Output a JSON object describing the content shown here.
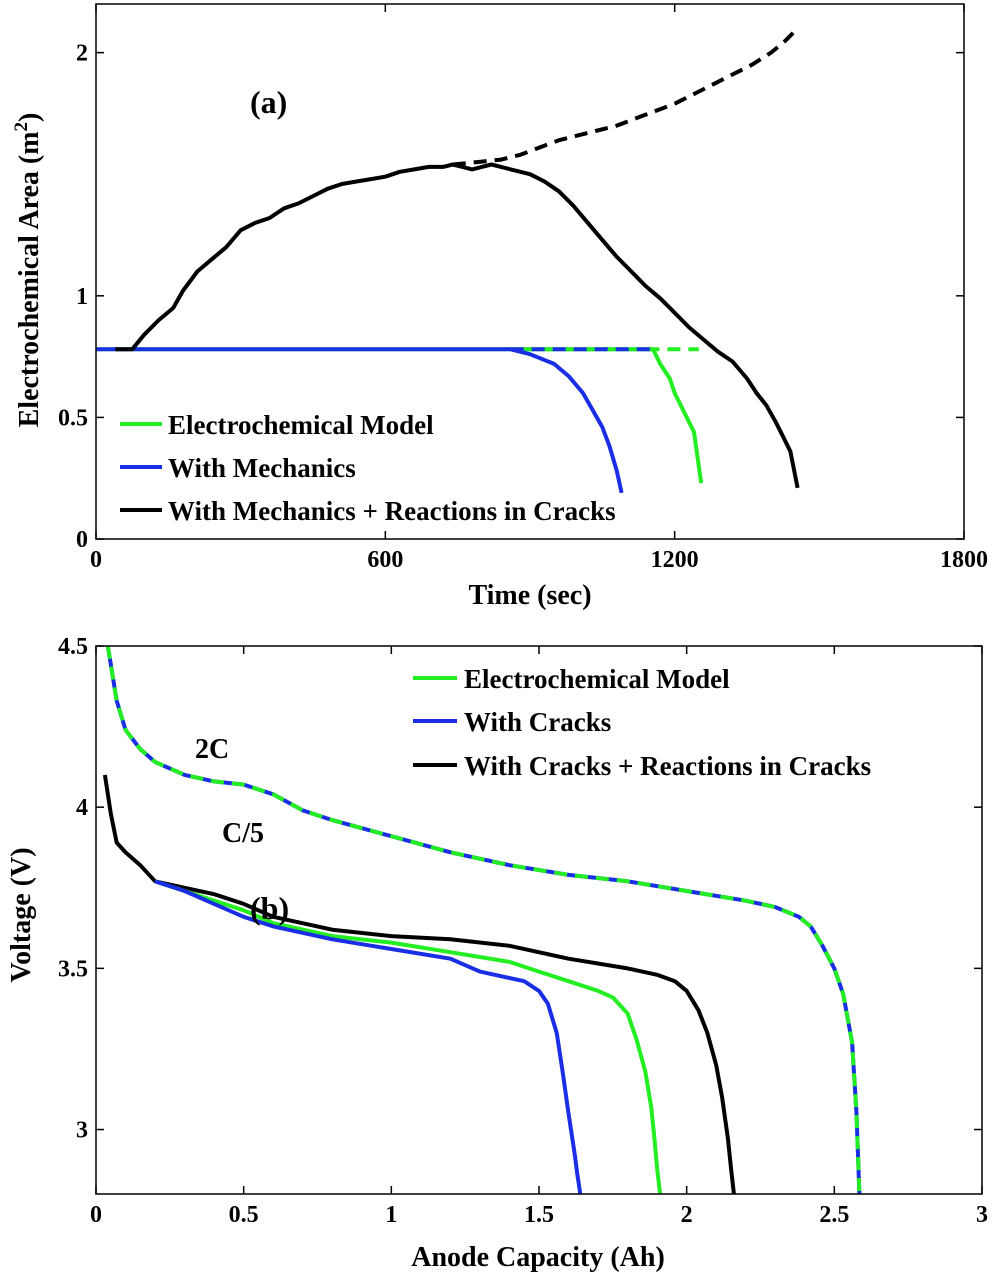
{
  "chart_data": [
    {
      "type": "line",
      "panel_label": "(a)",
      "xlabel": "Time (sec)",
      "ylabel_main": "Electrochemical Area (m",
      "ylabel_sup": "2",
      "ylabel_end": ")",
      "xlim": [
        0,
        1800
      ],
      "ylim": [
        0,
        2.2
      ],
      "xticks": [
        0,
        600,
        1200,
        1800
      ],
      "xtick_labels": [
        "0",
        "600",
        "1200",
        "1800"
      ],
      "yticks": [
        0,
        0.5,
        1,
        2
      ],
      "ytick_labels": [
        "0",
        "0.5",
        "1",
        "2"
      ],
      "legend": [
        "Electrochemical Model",
        "With Mechanics",
        "With Mechanics + Reactions in Cracks"
      ],
      "series": [
        {
          "name": "Electrochemical Model",
          "color": "#22ee22",
          "dash": false,
          "x": [
            0,
            1155,
            1170,
            1190,
            1200,
            1210,
            1220,
            1240,
            1255
          ],
          "y": [
            0.78,
            0.78,
            0.72,
            0.66,
            0.6,
            0.56,
            0.52,
            0.44,
            0.23
          ]
        },
        {
          "name": "Electrochemical Model (dashed)",
          "color": "#22ee22",
          "dash": true,
          "x": [
            880,
            1250
          ],
          "y": [
            0.78,
            0.78
          ]
        },
        {
          "name": "With Mechanics",
          "color": "#1a2ee6",
          "dash": false,
          "x": [
            0,
            860,
            900,
            950,
            980,
            1010,
            1030,
            1050,
            1065,
            1080,
            1090
          ],
          "y": [
            0.78,
            0.78,
            0.76,
            0.72,
            0.67,
            0.6,
            0.53,
            0.46,
            0.38,
            0.28,
            0.19
          ]
        },
        {
          "name": "With Mechanics (dashed)",
          "color": "#1a2ee6",
          "dash": true,
          "x": [
            860,
            1160
          ],
          "y": [
            0.78,
            0.78
          ]
        },
        {
          "name": "With Mechanics + Reactions in Cracks",
          "color": "#000000",
          "dash": false,
          "x": [
            40,
            75,
            100,
            130,
            160,
            180,
            210,
            240,
            270,
            300,
            330,
            360,
            390,
            420,
            450,
            480,
            510,
            540,
            570,
            600,
            630,
            660,
            690,
            720,
            740,
            760,
            780,
            800,
            820,
            840,
            860,
            880,
            900,
            930,
            960,
            990,
            1020,
            1050,
            1080,
            1110,
            1140,
            1170,
            1200,
            1230,
            1260,
            1290,
            1320,
            1350,
            1370,
            1390,
            1410,
            1425,
            1440,
            1455
          ],
          "y": [
            0.78,
            0.78,
            0.84,
            0.9,
            0.95,
            1.02,
            1.1,
            1.15,
            1.2,
            1.27,
            1.3,
            1.32,
            1.36,
            1.38,
            1.41,
            1.44,
            1.46,
            1.47,
            1.48,
            1.49,
            1.51,
            1.52,
            1.53,
            1.53,
            1.54,
            1.53,
            1.52,
            1.53,
            1.54,
            1.53,
            1.52,
            1.51,
            1.5,
            1.47,
            1.43,
            1.37,
            1.3,
            1.23,
            1.16,
            1.1,
            1.04,
            0.99,
            0.93,
            0.87,
            0.82,
            0.77,
            0.73,
            0.66,
            0.6,
            0.55,
            0.48,
            0.42,
            0.36,
            0.21
          ]
        },
        {
          "name": "With Mechanics + Reactions in Cracks (dashed)",
          "color": "#000000",
          "dash": true,
          "x": [
            740,
            790,
            840,
            880,
            920,
            960,
            1000,
            1040,
            1080,
            1120,
            1160,
            1200,
            1240,
            1280,
            1320,
            1360,
            1400,
            1430,
            1450
          ],
          "y": [
            1.54,
            1.55,
            1.56,
            1.58,
            1.61,
            1.64,
            1.66,
            1.68,
            1.7,
            1.73,
            1.76,
            1.79,
            1.83,
            1.87,
            1.91,
            1.95,
            2.0,
            2.05,
            2.09
          ]
        }
      ]
    },
    {
      "type": "line",
      "panel_label": "(b)",
      "xlabel": "Anode Capacity (Ah)",
      "ylabel": "Voltage (V)",
      "xlim": [
        0,
        3
      ],
      "ylim": [
        2.8,
        4.5
      ],
      "xticks": [
        0,
        0.5,
        1,
        1.5,
        2,
        2.5,
        3
      ],
      "xtick_labels": [
        "0",
        "0.5",
        "1",
        "1.5",
        "2",
        "2.5",
        "3"
      ],
      "yticks": [
        3,
        3.5,
        4,
        4.5
      ],
      "ytick_labels": [
        "3",
        "3.5",
        "4",
        "4.5"
      ],
      "legend": [
        "Electrochemical Model",
        "With Cracks",
        "With Cracks + Reactions in Cracks"
      ],
      "annotations": [
        "C/5",
        "2C"
      ],
      "series": [
        {
          "name": "C/5 With Cracks",
          "color": "#1a2ee6",
          "dash": false,
          "x": [
            0.04,
            0.07,
            0.1,
            0.15,
            0.2,
            0.3,
            0.4,
            0.5,
            0.6,
            0.7,
            0.8,
            1.0,
            1.2,
            1.4,
            1.6,
            1.8,
            2.0,
            2.2,
            2.3,
            2.38,
            2.42,
            2.46,
            2.5,
            2.53,
            2.56,
            2.575,
            2.585
          ],
          "y": [
            4.5,
            4.33,
            4.24,
            4.18,
            4.14,
            4.1,
            4.08,
            4.07,
            4.04,
            3.99,
            3.96,
            3.91,
            3.86,
            3.82,
            3.79,
            3.77,
            3.74,
            3.71,
            3.69,
            3.66,
            3.63,
            3.57,
            3.5,
            3.42,
            3.27,
            3.05,
            2.8
          ]
        },
        {
          "name": "C/5 Electrochemical Model (dashed)",
          "color": "#22ee22",
          "dash": true,
          "x": [
            0.04,
            0.07,
            0.1,
            0.15,
            0.2,
            0.3,
            0.4,
            0.5,
            0.6,
            0.7,
            0.8,
            1.0,
            1.2,
            1.4,
            1.6,
            1.8,
            2.0,
            2.2,
            2.3,
            2.38,
            2.42,
            2.46,
            2.5,
            2.53,
            2.56,
            2.575,
            2.585
          ],
          "y": [
            4.5,
            4.33,
            4.24,
            4.18,
            4.14,
            4.1,
            4.08,
            4.07,
            4.04,
            3.99,
            3.96,
            3.91,
            3.86,
            3.82,
            3.79,
            3.77,
            3.74,
            3.71,
            3.69,
            3.66,
            3.63,
            3.57,
            3.5,
            3.42,
            3.27,
            3.05,
            2.8
          ]
        },
        {
          "name": "2C With Cracks + Reactions in Cracks",
          "color": "#000000",
          "dash": false,
          "x": [
            0.03,
            0.05,
            0.07,
            0.1,
            0.15,
            0.2,
            0.3,
            0.4,
            0.5,
            0.6,
            0.8,
            1.0,
            1.2,
            1.4,
            1.6,
            1.8,
            1.9,
            1.96,
            2.0,
            2.04,
            2.07,
            2.1,
            2.12,
            2.14,
            2.15,
            2.16
          ],
          "y": [
            4.1,
            3.98,
            3.89,
            3.86,
            3.82,
            3.77,
            3.75,
            3.73,
            3.7,
            3.66,
            3.62,
            3.6,
            3.59,
            3.57,
            3.53,
            3.5,
            3.48,
            3.46,
            3.43,
            3.37,
            3.3,
            3.2,
            3.1,
            2.97,
            2.88,
            2.8
          ]
        },
        {
          "name": "2C Electrochemical Model",
          "color": "#22ee22",
          "dash": false,
          "x": [
            0.2,
            0.3,
            0.4,
            0.5,
            0.6,
            0.8,
            1.0,
            1.2,
            1.4,
            1.5,
            1.6,
            1.7,
            1.75,
            1.8,
            1.83,
            1.86,
            1.88,
            1.89,
            1.9,
            1.91
          ],
          "y": [
            3.77,
            3.74,
            3.71,
            3.68,
            3.64,
            3.6,
            3.58,
            3.55,
            3.52,
            3.49,
            3.46,
            3.43,
            3.41,
            3.36,
            3.28,
            3.18,
            3.07,
            2.98,
            2.88,
            2.8
          ]
        },
        {
          "name": "2C With Cracks",
          "color": "#1a2ee6",
          "dash": false,
          "x": [
            0.2,
            0.3,
            0.4,
            0.5,
            0.6,
            0.8,
            1.0,
            1.2,
            1.3,
            1.45,
            1.5,
            1.53,
            1.56,
            1.58,
            1.6,
            1.62,
            1.63,
            1.64
          ],
          "y": [
            3.77,
            3.74,
            3.7,
            3.66,
            3.63,
            3.59,
            3.56,
            3.53,
            3.49,
            3.46,
            3.43,
            3.39,
            3.3,
            3.18,
            3.05,
            2.93,
            2.86,
            2.8
          ]
        }
      ]
    }
  ]
}
